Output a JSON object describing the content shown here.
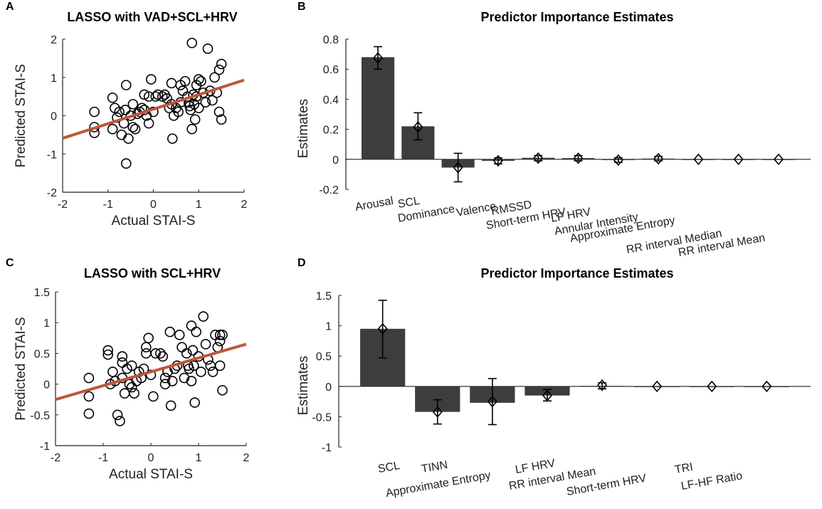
{
  "chart_data": [
    {
      "panel": "A",
      "type": "scatter",
      "title": "LASSO with VAD+SCL+HRV",
      "xlabel": "Actual STAI-S",
      "ylabel": "Predicted STAI-S",
      "xlim": [
        -2,
        2
      ],
      "ylim": [
        -2,
        2
      ],
      "xticks": [
        -2,
        -1,
        0,
        1,
        2
      ],
      "yticks": [
        -2,
        -1,
        0,
        1,
        2
      ],
      "fit_line": {
        "slope": 0.38,
        "intercept": 0.17,
        "color": "#c0573a"
      },
      "points": [
        [
          -1.3,
          0.1
        ],
        [
          -1.3,
          -0.3
        ],
        [
          -1.3,
          -0.45
        ],
        [
          -0.9,
          0.47
        ],
        [
          -0.9,
          -0.35
        ],
        [
          -0.85,
          0.2
        ],
        [
          -0.8,
          -0.05
        ],
        [
          -0.75,
          0.1
        ],
        [
          -0.7,
          -0.5
        ],
        [
          -0.65,
          -0.2
        ],
        [
          -0.62,
          0.15
        ],
        [
          -0.6,
          0.8
        ],
        [
          -0.6,
          -1.25
        ],
        [
          -0.55,
          -0.6
        ],
        [
          -0.5,
          0.0
        ],
        [
          -0.45,
          0.3
        ],
        [
          -0.45,
          -0.3
        ],
        [
          -0.4,
          -0.35
        ],
        [
          -0.35,
          0.05
        ],
        [
          -0.3,
          0.1
        ],
        [
          -0.25,
          0.2
        ],
        [
          -0.2,
          0.15
        ],
        [
          -0.15,
          0.0
        ],
        [
          -0.1,
          0.5
        ],
        [
          -0.1,
          -0.2
        ],
        [
          -0.05,
          0.95
        ],
        [
          0.0,
          0.1
        ],
        [
          0.05,
          0.5
        ],
        [
          0.1,
          0.55
        ],
        [
          0.2,
          0.5
        ],
        [
          0.25,
          0.55
        ],
        [
          0.3,
          0.45
        ],
        [
          0.35,
          0.2
        ],
        [
          0.4,
          0.85
        ],
        [
          0.4,
          0.3
        ],
        [
          0.42,
          -0.6
        ],
        [
          0.45,
          0.0
        ],
        [
          0.5,
          0.2
        ],
        [
          0.55,
          0.1
        ],
        [
          0.6,
          0.8
        ],
        [
          0.65,
          0.65
        ],
        [
          0.7,
          0.9
        ],
        [
          0.75,
          0.5
        ],
        [
          0.78,
          0.35
        ],
        [
          0.8,
          0.25
        ],
        [
          0.82,
          0.15
        ],
        [
          0.85,
          1.9
        ],
        [
          0.88,
          0.55
        ],
        [
          0.9,
          0.3
        ],
        [
          0.92,
          -0.1
        ],
        [
          0.95,
          0.8
        ],
        [
          0.95,
          0.5
        ],
        [
          1.0,
          0.2
        ],
        [
          1.05,
          0.9
        ],
        [
          1.1,
          0.6
        ],
        [
          1.15,
          0.35
        ],
        [
          1.2,
          1.75
        ],
        [
          1.25,
          0.65
        ],
        [
          1.3,
          0.4
        ],
        [
          1.35,
          1.0
        ],
        [
          1.4,
          0.6
        ],
        [
          1.45,
          1.2
        ],
        [
          1.45,
          0.1
        ],
        [
          1.5,
          1.35
        ],
        [
          1.5,
          -0.1
        ],
        [
          0.85,
          -0.35
        ],
        [
          0.6,
          0.35
        ],
        [
          1.0,
          0.95
        ],
        [
          -0.2,
          0.55
        ]
      ]
    },
    {
      "panel": "B",
      "type": "bar",
      "title": "Predictor Importance Estimates",
      "xlabel": "",
      "ylabel": "Estimates",
      "ylim": [
        -0.2,
        0.8
      ],
      "yticks": [
        -0.2,
        0,
        0.2,
        0.4,
        0.6,
        0.8
      ],
      "categories": [
        "Arousal",
        "SCL",
        "Dominance",
        "Valence",
        "RMSSD",
        "Short-term HRV",
        "LF HRV",
        "Annular Intensity",
        "Approximate Entropy",
        "RR interval Median",
        "RR interval Mean"
      ],
      "values": [
        0.68,
        0.22,
        -0.055,
        -0.01,
        0.01,
        0.008,
        -0.005,
        0.005,
        0.0,
        0.0,
        0.0
      ],
      "means": [
        0.675,
        0.215,
        -0.055,
        -0.01,
        0.008,
        0.007,
        -0.005,
        0.004,
        0.0,
        0.0,
        0.0
      ],
      "err_low": [
        0.6,
        0.13,
        -0.15,
        -0.03,
        -0.01,
        -0.01,
        -0.02,
        -0.01,
        0.0,
        0.0,
        0.0
      ],
      "err_high": [
        0.75,
        0.31,
        0.04,
        0.01,
        0.025,
        0.025,
        0.01,
        0.02,
        0.0,
        0.0,
        0.0
      ]
    },
    {
      "panel": "C",
      "type": "scatter",
      "title": "LASSO with SCL+HRV",
      "xlabel": "Actual STAI-S",
      "ylabel": "Predicted STAI-S",
      "xlim": [
        -2,
        2
      ],
      "ylim": [
        -1,
        1.5
      ],
      "xticks": [
        -2,
        -1,
        0,
        1,
        2
      ],
      "yticks": [
        -1,
        -0.5,
        0,
        0.5,
        1,
        1.5
      ],
      "fit_line": {
        "slope": 0.225,
        "intercept": 0.2,
        "color": "#c0573a"
      },
      "points": [
        [
          -1.3,
          0.1
        ],
        [
          -1.3,
          -0.2
        ],
        [
          -1.3,
          -0.48
        ],
        [
          -0.9,
          0.55
        ],
        [
          -0.9,
          0.48
        ],
        [
          -0.85,
          0.0
        ],
        [
          -0.8,
          0.2
        ],
        [
          -0.75,
          0.05
        ],
        [
          -0.7,
          -0.5
        ],
        [
          -0.65,
          -0.6
        ],
        [
          -0.6,
          0.45
        ],
        [
          -0.6,
          0.1
        ],
        [
          -0.55,
          -0.15
        ],
        [
          -0.5,
          0.25
        ],
        [
          -0.45,
          0.0
        ],
        [
          -0.4,
          0.3
        ],
        [
          -0.4,
          -0.05
        ],
        [
          -0.35,
          -0.15
        ],
        [
          -0.3,
          0.05
        ],
        [
          -0.25,
          0.2
        ],
        [
          -0.2,
          0.1
        ],
        [
          -0.15,
          0.25
        ],
        [
          -0.1,
          0.6
        ],
        [
          -0.1,
          0.5
        ],
        [
          -0.05,
          0.75
        ],
        [
          0.0,
          0.15
        ],
        [
          0.05,
          -0.2
        ],
        [
          0.1,
          0.5
        ],
        [
          0.2,
          0.5
        ],
        [
          0.25,
          0.45
        ],
        [
          0.3,
          0.1
        ],
        [
          0.35,
          0.2
        ],
        [
          0.4,
          0.85
        ],
        [
          0.42,
          -0.35
        ],
        [
          0.45,
          0.05
        ],
        [
          0.5,
          0.25
        ],
        [
          0.55,
          0.3
        ],
        [
          0.6,
          0.8
        ],
        [
          0.65,
          0.6
        ],
        [
          0.7,
          0.1
        ],
        [
          0.75,
          0.5
        ],
        [
          0.78,
          0.3
        ],
        [
          0.8,
          0.25
        ],
        [
          0.85,
          0.95
        ],
        [
          0.88,
          0.55
        ],
        [
          0.9,
          0.3
        ],
        [
          0.92,
          -0.3
        ],
        [
          0.95,
          0.85
        ],
        [
          1.0,
          0.45
        ],
        [
          1.05,
          0.2
        ],
        [
          1.1,
          1.1
        ],
        [
          1.15,
          0.65
        ],
        [
          1.2,
          0.4
        ],
        [
          1.25,
          0.3
        ],
        [
          1.3,
          0.2
        ],
        [
          1.35,
          0.8
        ],
        [
          1.4,
          0.6
        ],
        [
          1.45,
          0.8
        ],
        [
          1.45,
          0.3
        ],
        [
          1.5,
          0.8
        ],
        [
          1.5,
          -0.1
        ],
        [
          1.45,
          0.7
        ],
        [
          0.85,
          0.05
        ],
        [
          0.3,
          0.0
        ],
        [
          -0.6,
          0.35
        ]
      ]
    },
    {
      "panel": "D",
      "type": "bar",
      "title": "Predictor Importance Estimates",
      "xlabel": "",
      "ylabel": "Estimates",
      "ylim": [
        -1,
        1.5
      ],
      "yticks": [
        -1,
        -0.5,
        0,
        0.5,
        1,
        1.5
      ],
      "categories": [
        "SCL",
        "TINN",
        "Approximate Entropy",
        "LF HRV",
        "RR interval Mean",
        "Short-term HRV",
        "TRI",
        "LF-HF Ratio"
      ],
      "values": [
        0.95,
        -0.42,
        -0.27,
        -0.15,
        0.01,
        0.0,
        0.0,
        0.0
      ],
      "means": [
        0.95,
        -0.42,
        -0.25,
        -0.15,
        0.02,
        0.0,
        0.0,
        0.0
      ],
      "err_low": [
        0.47,
        -0.62,
        -0.63,
        -0.24,
        -0.04,
        0.0,
        0.0,
        0.0
      ],
      "err_high": [
        1.42,
        -0.22,
        0.13,
        -0.05,
        0.06,
        0.0,
        0.0,
        0.0
      ]
    }
  ],
  "panel_letters": [
    "A",
    "B",
    "C",
    "D"
  ],
  "colors": {
    "bar": "#3d3d3d",
    "fit": "#c0573a",
    "marker": "#000000"
  }
}
